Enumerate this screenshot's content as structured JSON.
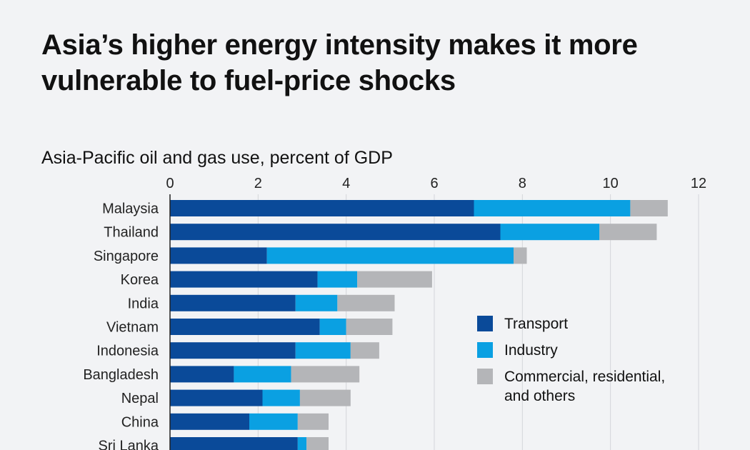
{
  "headline": {
    "line1": "Asia’s higher energy intensity makes it more",
    "line2": "vulnerable to fuel-price shocks"
  },
  "chart_data": {
    "type": "bar",
    "orientation": "horizontal",
    "stacked": true,
    "title": "Asia-Pacific oil and gas use, percent of GDP",
    "xlabel": "",
    "ylabel": "",
    "xlim": [
      0,
      12
    ],
    "xticks": [
      0,
      2,
      4,
      6,
      8,
      10,
      12
    ],
    "grid": true,
    "legend_position": "bottom-right",
    "categories": [
      "Malaysia",
      "Thailand",
      "Singapore",
      "Korea",
      "India",
      "Vietnam",
      "Indonesia",
      "Bangladesh",
      "Nepal",
      "China",
      "Sri Lanka"
    ],
    "series": [
      {
        "name": "Transport",
        "color": "#0a4a99",
        "values": [
          6.9,
          7.5,
          2.2,
          3.35,
          2.85,
          3.4,
          2.85,
          1.45,
          2.1,
          1.8,
          2.9
        ]
      },
      {
        "name": "Industry",
        "color": "#0aa0e2",
        "values": [
          3.55,
          2.25,
          5.6,
          0.9,
          0.95,
          0.6,
          1.25,
          1.3,
          0.85,
          1.1,
          0.2
        ]
      },
      {
        "name": "Commercial, residential, and others",
        "color": "#b4b5b8",
        "values": [
          0.85,
          1.3,
          0.3,
          1.7,
          1.3,
          1.05,
          0.65,
          1.55,
          1.15,
          0.7,
          0.5
        ]
      }
    ]
  },
  "legend": {
    "items": [
      {
        "label": "Transport",
        "color": "#0a4a99"
      },
      {
        "label": "Industry",
        "color": "#0aa0e2"
      },
      {
        "label": "Commercial, residential,",
        "label2": "and others",
        "color": "#b4b5b8"
      }
    ]
  }
}
